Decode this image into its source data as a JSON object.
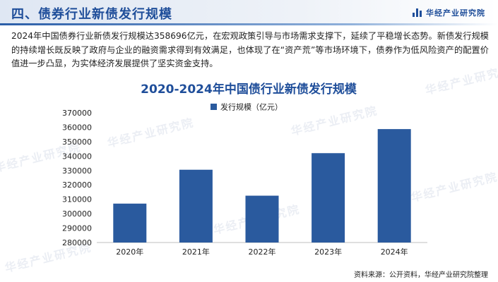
{
  "header": {
    "section_title": "四、债券行业新债发行规模",
    "brand_name": "华经产业研究院"
  },
  "description": "2024年中国债券行业新债发行规模达358696亿元，在宏观政策引导与市场需求支撑下，延续了平稳增长态势。新债发行规模的持续增长既反映了政府与企业的融资需求得到有效满足，也体现了在“资产荒”等市场环境下，债券作为低风险资产的配置价值进一步凸显，为实体经济发展提供了坚实资金支持。",
  "footnote": "资料来源：公开资料，华经产业研究院整理",
  "watermark_text": "华经产业研究院",
  "chart_data": {
    "type": "bar",
    "title": "2020-2024年中国债行业新债发行规模",
    "categories": [
      "2020年",
      "2021年",
      "2022年",
      "2023年",
      "2024年"
    ],
    "series": [
      {
        "name": "发行规模（亿元）",
        "values": [
          307000,
          330500,
          312500,
          342000,
          358696
        ]
      }
    ],
    "ylim": [
      280000,
      370000
    ],
    "yticks": [
      280000,
      290000,
      300000,
      310000,
      320000,
      330000,
      340000,
      350000,
      360000,
      370000
    ],
    "legend_position": "top",
    "grid": false,
    "bar_color": "#2a5a9e",
    "title_color": "#1f4e9a"
  }
}
